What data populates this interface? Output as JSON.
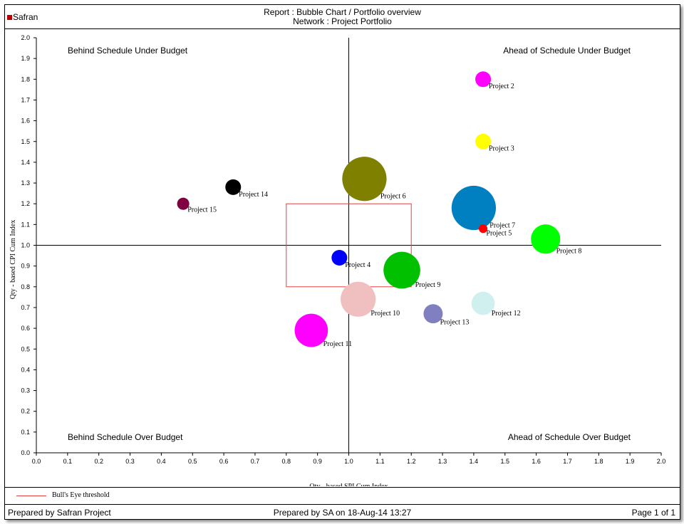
{
  "header": {
    "logo_text": "Safran",
    "report_title": "Report : Bubble Chart / Portfolio overview",
    "network_title": "Network : Project Portfolio"
  },
  "chart_data": {
    "type": "scatter",
    "subtype": "bubble",
    "xlabel": "Qty - based SPI Cum Index",
    "ylabel": "Qty - based CPI  Cum Index",
    "xlim": [
      0.0,
      2.0
    ],
    "ylim": [
      0.0,
      2.0
    ],
    "x_ticks": [
      "0.0",
      "0.1",
      "0.2",
      "0.3",
      "0.4",
      "0.5",
      "0.6",
      "0.7",
      "0.8",
      "0.9",
      "1.0",
      "1.1",
      "1.2",
      "1.3",
      "1.4",
      "1.5",
      "1.6",
      "1.7",
      "1.8",
      "1.9",
      "2.0"
    ],
    "y_ticks": [
      "0.0",
      "0.1",
      "0.2",
      "0.3",
      "0.4",
      "0.5",
      "0.6",
      "0.7",
      "0.8",
      "0.9",
      "1.0",
      "1.1",
      "1.2",
      "1.3",
      "1.4",
      "1.5",
      "1.6",
      "1.7",
      "1.8",
      "1.9",
      "2.0"
    ],
    "reference_lines": {
      "x": 1.0,
      "y": 1.0
    },
    "quadrants": {
      "top_left": "Behind Schedule Under Budget",
      "top_right": "Ahead of Schedule Under Budget",
      "bottom_left": "Behind Schedule Over Budget",
      "bottom_right": "Ahead of Schedule Over Budget"
    },
    "bulls_eye": {
      "x": [
        0.8,
        1.2
      ],
      "y": [
        0.8,
        1.2
      ],
      "color": "#e04040",
      "label": "Bull's Eye threshold"
    },
    "points": [
      {
        "name": "Project 2",
        "x": 1.43,
        "y": 1.8,
        "size": 1.0,
        "color": "#ff00ff"
      },
      {
        "name": "Project 3",
        "x": 1.43,
        "y": 1.5,
        "size": 1.0,
        "color": "#ffff00"
      },
      {
        "name": "Project 4",
        "x": 0.97,
        "y": 0.94,
        "size": 1.0,
        "color": "#0000ff"
      },
      {
        "name": "Project 5",
        "x": 1.43,
        "y": 1.08,
        "size": 0.3,
        "color": "#ff0000"
      },
      {
        "name": "Project 6",
        "x": 1.05,
        "y": 1.32,
        "size": 8.0,
        "color": "#808000"
      },
      {
        "name": "Project 7",
        "x": 1.4,
        "y": 1.18,
        "size": 8.0,
        "color": "#0080c0"
      },
      {
        "name": "Project 8",
        "x": 1.63,
        "y": 1.03,
        "size": 3.5,
        "color": "#00ff00"
      },
      {
        "name": "Project 9",
        "x": 1.17,
        "y": 0.88,
        "size": 5.5,
        "color": "#00c000"
      },
      {
        "name": "Project 10",
        "x": 1.03,
        "y": 0.74,
        "size": 5.0,
        "color": "#f0c0c0"
      },
      {
        "name": "Project 11",
        "x": 0.88,
        "y": 0.59,
        "size": 4.5,
        "color": "#ff00ff"
      },
      {
        "name": "Project 12",
        "x": 1.43,
        "y": 0.72,
        "size": 2.2,
        "color": "#d0f0f0"
      },
      {
        "name": "Project 13",
        "x": 1.27,
        "y": 0.67,
        "size": 1.5,
        "color": "#8080c0"
      },
      {
        "name": "Project 14",
        "x": 0.63,
        "y": 1.28,
        "size": 1.0,
        "color": "#000000"
      },
      {
        "name": "Project 15",
        "x": 0.47,
        "y": 1.2,
        "size": 0.6,
        "color": "#800040"
      }
    ]
  },
  "legend": {
    "bulls_eye_label": "Bull's Eye threshold"
  },
  "footer": {
    "left": "Prepared by Safran Project",
    "center": "Prepared by SA on 18-Aug-14 13:27",
    "right": "Page 1 of 1"
  }
}
